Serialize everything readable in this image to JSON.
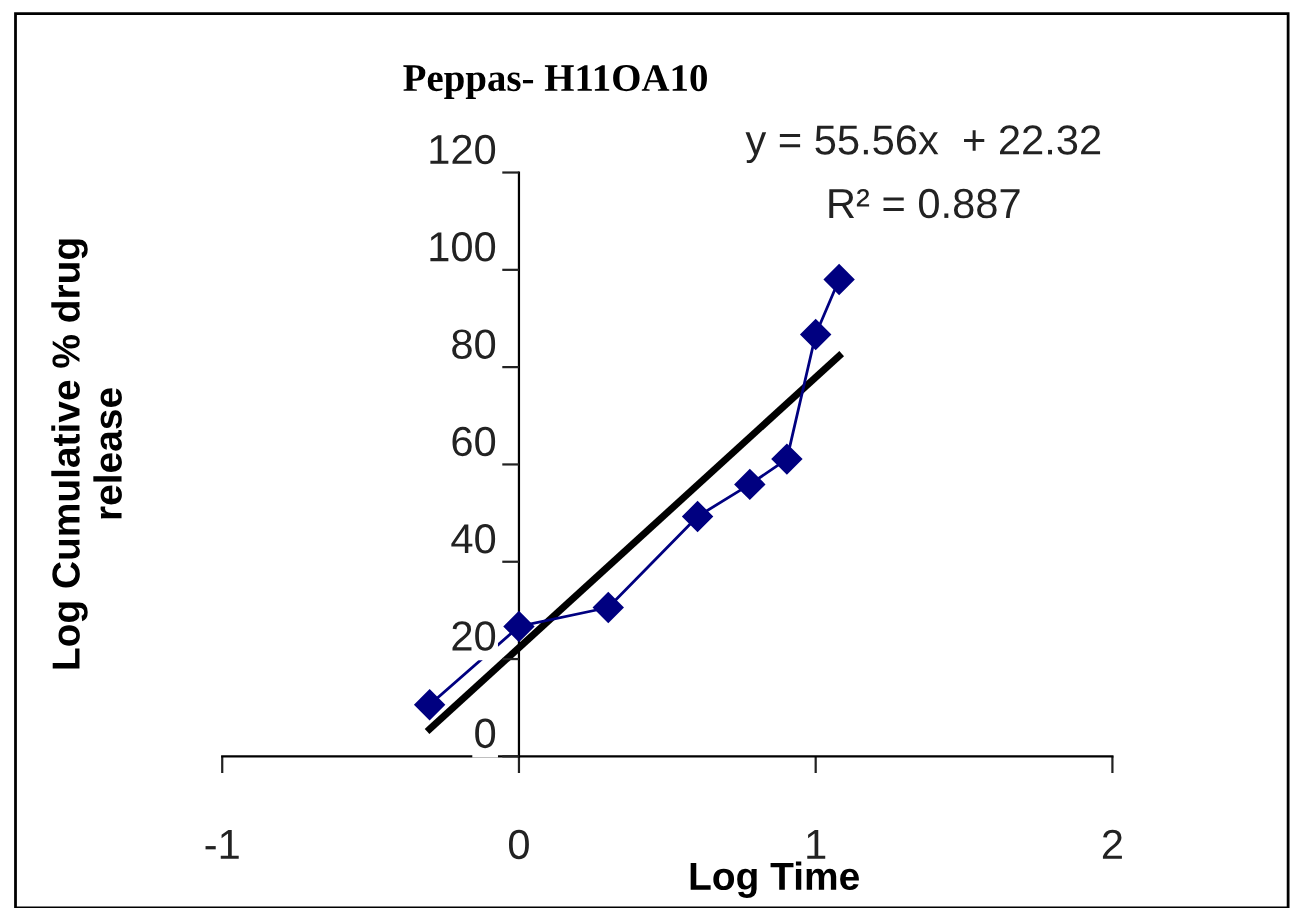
{
  "chart_data": {
    "type": "line",
    "title": "Peppas- H11OA10",
    "xlabel": "Log Time",
    "ylabel": "Log Cumulative % drug\nrelease",
    "annotations": [
      "y = 55.56x  + 22.32",
      "R² = 0.887"
    ],
    "series": [
      {
        "color": "#000080",
        "x": [
          -0.301,
          0,
          0.301,
          0.602,
          0.778,
          0.903,
          1.0,
          1.079
        ],
        "values": [
          10.6,
          26.7,
          30.6,
          49.3,
          55.9,
          61.1,
          86.7,
          98.0
        ],
        "marker": "diamond"
      },
      {
        "color": "#000000",
        "x": [
          -0.301,
          1.079
        ],
        "values": [
          5.6,
          82.3
        ],
        "marker": "none"
      }
    ],
    "xlim": [
      -1,
      2
    ],
    "ylim": [
      0,
      120
    ],
    "xticks": [
      -1,
      0,
      1,
      2
    ],
    "yticks": [
      0,
      20,
      40,
      60,
      80,
      100,
      120
    ],
    "grid": false,
    "legend": false
  }
}
